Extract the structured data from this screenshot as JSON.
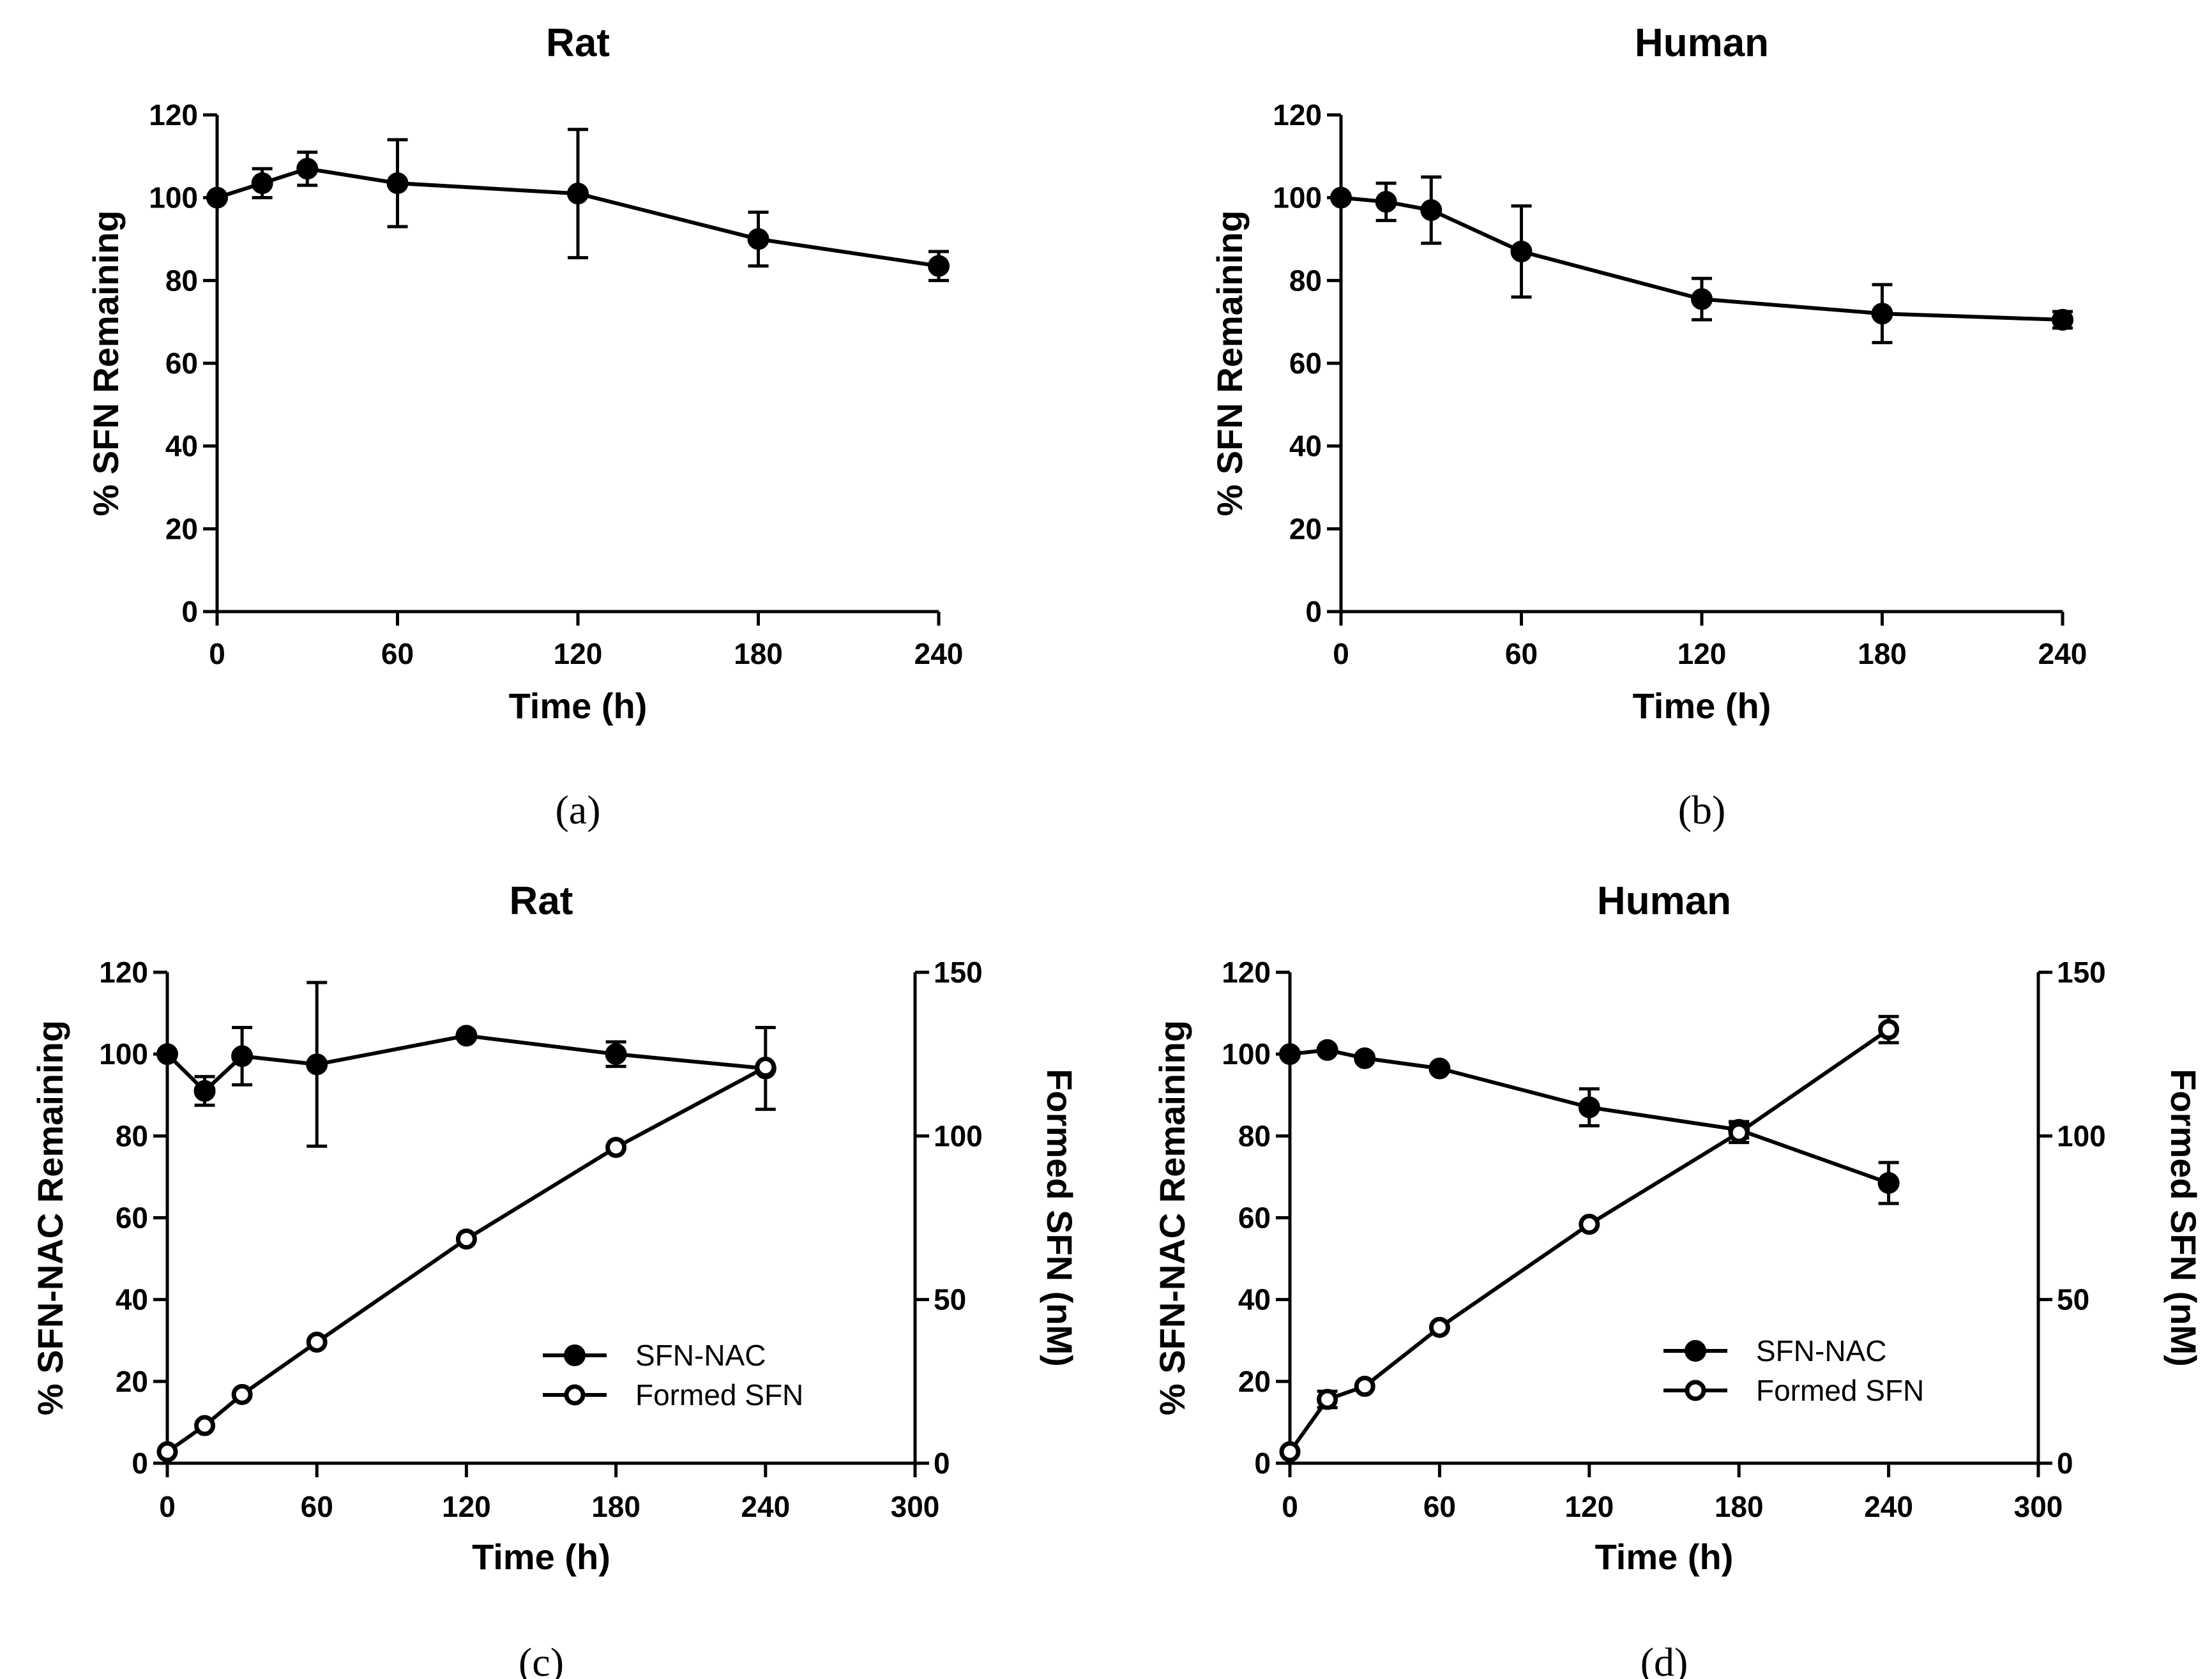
{
  "chart_data": [
    {
      "id": "a",
      "type": "line",
      "title": "Rat",
      "caption": "(a)",
      "xlabel": "Time (h)",
      "ylabel": "% SFN Remaining",
      "xlim": [
        0,
        240
      ],
      "ylim": [
        0,
        120
      ],
      "xticks": [
        0,
        60,
        120,
        180,
        240
      ],
      "yticks": [
        0,
        20,
        40,
        60,
        80,
        100,
        120
      ],
      "series": [
        {
          "name": "SFN",
          "marker": "filled",
          "x": [
            0,
            15,
            30,
            60,
            120,
            180,
            240
          ],
          "y": [
            100,
            103.5,
            107,
            103.5,
            101,
            90,
            83.5
          ],
          "err": [
            0,
            3.5,
            4,
            10.5,
            15.5,
            6.5,
            3.5
          ]
        }
      ]
    },
    {
      "id": "b",
      "type": "line",
      "title": "Human",
      "caption": "(b)",
      "xlabel": "Time (h)",
      "ylabel": "% SFN Remaining",
      "xlim": [
        0,
        240
      ],
      "ylim": [
        0,
        120
      ],
      "xticks": [
        0,
        60,
        120,
        180,
        240
      ],
      "yticks": [
        0,
        20,
        40,
        60,
        80,
        100,
        120
      ],
      "series": [
        {
          "name": "SFN",
          "marker": "filled",
          "x": [
            0,
            15,
            30,
            60,
            120,
            180,
            240
          ],
          "y": [
            100,
            99,
            97,
            87,
            75.5,
            72,
            70.5
          ],
          "err": [
            0,
            4.5,
            8,
            11,
            5,
            7,
            2
          ]
        }
      ]
    },
    {
      "id": "c",
      "type": "line",
      "title": "Rat",
      "caption": "(c)",
      "xlabel": "Time (h)",
      "ylabel": "% SFN-NAC Remaining",
      "y2label": "Formed  SFN (nM)",
      "xlim": [
        0,
        300
      ],
      "ylim": [
        0,
        120
      ],
      "y2lim": [
        0,
        150
      ],
      "xticks": [
        0,
        60,
        120,
        180,
        240,
        300
      ],
      "yticks": [
        0,
        20,
        40,
        60,
        80,
        100,
        120
      ],
      "y2ticks": [
        0,
        50,
        100,
        150
      ],
      "series": [
        {
          "name": "SFN-NAC",
          "axis": "left",
          "marker": "filled",
          "x": [
            0,
            15,
            30,
            60,
            120,
            180,
            240
          ],
          "y": [
            100,
            91,
            99.5,
            97.5,
            104.5,
            100,
            96.5
          ],
          "err": [
            0,
            3.5,
            7,
            20,
            0,
            3,
            10
          ]
        },
        {
          "name": "Formed SFN",
          "axis": "right",
          "marker": "open",
          "x": [
            0,
            15,
            30,
            60,
            120,
            180,
            240
          ],
          "y": [
            3.5,
            11.5,
            21,
            37,
            68.5,
            96.5,
            121
          ],
          "err": [
            0,
            0,
            0,
            0,
            0,
            0,
            0
          ]
        }
      ]
    },
    {
      "id": "d",
      "type": "line",
      "title": "Human",
      "caption": "(d)",
      "xlabel": "Time (h)",
      "ylabel": "% SFN-NAC Remaining",
      "y2label": "Formed  SFN (nM)",
      "xlim": [
        0,
        300
      ],
      "ylim": [
        0,
        120
      ],
      "y2lim": [
        0,
        150
      ],
      "xticks": [
        0,
        60,
        120,
        180,
        240,
        300
      ],
      "yticks": [
        0,
        20,
        40,
        60,
        80,
        100,
        120
      ],
      "y2ticks": [
        0,
        50,
        100,
        150
      ],
      "series": [
        {
          "name": "SFN-NAC",
          "axis": "left",
          "marker": "filled",
          "x": [
            0,
            15,
            30,
            60,
            120,
            180,
            240
          ],
          "y": [
            100,
            101,
            99,
            96.5,
            87,
            81.5,
            68.5
          ],
          "err": [
            0,
            0,
            0,
            0,
            4.5,
            2,
            5
          ]
        },
        {
          "name": "Formed SFN",
          "axis": "right",
          "marker": "open",
          "x": [
            0,
            15,
            30,
            60,
            120,
            180,
            240
          ],
          "y": [
            3.5,
            19.5,
            23.5,
            41.5,
            73,
            101,
            132.5
          ],
          "err": [
            0,
            2.5,
            0,
            0,
            0,
            3,
            4
          ]
        }
      ]
    }
  ]
}
